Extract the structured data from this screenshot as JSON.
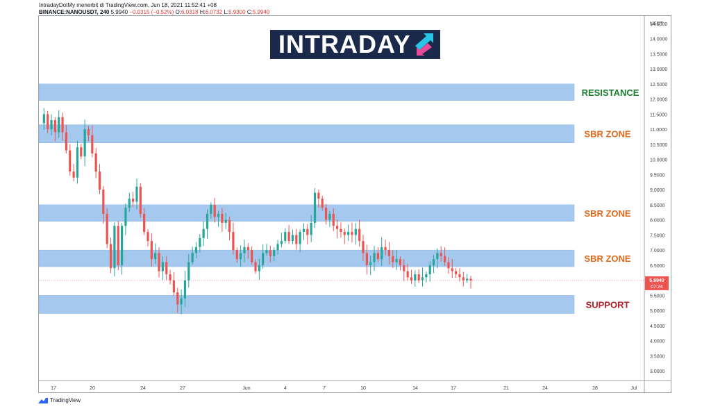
{
  "header": {
    "line1": "IntradayDotMy menerbit di TradingView.com, Jun 18, 2021 11:52:41 +08",
    "symbol": "BINANCE:NANOUSDT, 240",
    "price": "5.9940",
    "change": "−0.0315 (−0.52%)",
    "o_label": "O:",
    "o_value": "6.0318",
    "h_label": "H:",
    "h_value": "6.0732",
    "l_label": "L:",
    "l_value": "5.9300",
    "c_label": "C:",
    "c_value": "5.9940"
  },
  "logo": {
    "text": "INTRADAY"
  },
  "footer": {
    "brand": "TradingView"
  },
  "colors": {
    "up": "#26a69a",
    "down": "#ef5350",
    "zone": "#a4c8ee",
    "resistance": "#1b7d2f",
    "sbr": "#e06a1a",
    "support": "#b3202a",
    "pricetag": "#ef5350",
    "logo_bg": "#1b2a4a"
  },
  "chart_data": {
    "type": "candlestick",
    "title": "",
    "xlabel": "",
    "ylabel": "",
    "y_unit": "USDT",
    "ylim": [
      2.75,
      14.75
    ],
    "y_ticks": [
      "3.0000",
      "3.5000",
      "4.0000",
      "4.5000",
      "5.0000",
      "5.5000",
      "6.0000",
      "6.5000",
      "7.0000",
      "7.5000",
      "8.0000",
      "8.5000",
      "9.0000",
      "9.5000",
      "10.0000",
      "10.5000",
      "11.0000",
      "11.5000",
      "12.0000",
      "12.5000",
      "13.0000",
      "13.5000",
      "14.0000",
      "14.5000"
    ],
    "x_ticks": [
      "17",
      "20",
      "24",
      "27",
      "Jun",
      "4",
      "7",
      "10",
      "14",
      "17",
      "21",
      "24",
      "28",
      "Jul"
    ],
    "current_price": {
      "value": 5.994,
      "label": "5.9940",
      "countdown": "07:24"
    },
    "zones": [
      {
        "name": "RESISTANCE",
        "low": 11.95,
        "high": 12.5
      },
      {
        "name": "SBR ZONE",
        "low": 10.55,
        "high": 11.15
      },
      {
        "name": "SBR ZONE",
        "low": 7.95,
        "high": 8.5
      },
      {
        "name": "SBR ZONE",
        "low": 6.45,
        "high": 7.0
      },
      {
        "name": "SUPPORT",
        "low": 4.9,
        "high": 5.5
      }
    ],
    "price_path": [
      11.2,
      11.5,
      11.0,
      11.3,
      10.9,
      11.4,
      10.9,
      10.3,
      9.6,
      9.4,
      10.4,
      10.1,
      11.0,
      10.8,
      10.2,
      9.6,
      9.0,
      8.2,
      7.2,
      6.4,
      7.8,
      6.5,
      7.8,
      8.4,
      8.7,
      8.6,
      9.1,
      8.2,
      7.6,
      7.3,
      6.7,
      6.9,
      6.3,
      6.6,
      6.2,
      6.0,
      5.6,
      5.2,
      5.4,
      6.0,
      6.6,
      6.9,
      7.1,
      7.4,
      7.7,
      8.2,
      8.5,
      8.1,
      8.2,
      7.9,
      8.0,
      7.6,
      7.0,
      6.7,
      6.9,
      7.1,
      7.0,
      6.6,
      6.3,
      6.5,
      6.9,
      7.0,
      6.8,
      7.0,
      7.2,
      7.3,
      7.6,
      7.3,
      7.5,
      7.2,
      7.6,
      7.7,
      7.5,
      7.9,
      8.9,
      8.7,
      8.4,
      8.0,
      8.2,
      7.8,
      7.7,
      7.6,
      7.5,
      7.6,
      7.5,
      7.7,
      7.3,
      6.9,
      6.5,
      6.6,
      6.9,
      6.7,
      7.1,
      7.0,
      6.8,
      6.6,
      6.7,
      6.5,
      6.3,
      6.1,
      6.0,
      6.2,
      6.0,
      6.1,
      6.2,
      6.5,
      6.7,
      6.9,
      6.8,
      6.6,
      6.4,
      6.3,
      6.2,
      6.1,
      6.0,
      6.05,
      5.994
    ]
  }
}
